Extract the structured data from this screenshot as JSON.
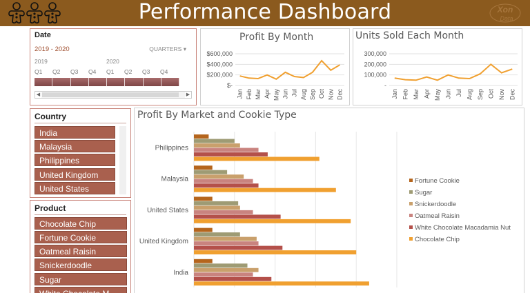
{
  "header": {
    "title": "Performance Dashboard",
    "brand_logo_text": "Xon Data"
  },
  "colors": {
    "header_bg": "#8B5A1E",
    "slicer_item": "#A9604E",
    "line": "#F0A030",
    "fortune_cookie": "#B5651D",
    "sugar": "#9E9B74",
    "snickerdoodle": "#C9A06C",
    "oatmeal_raisin": "#C9837F",
    "white_chocolate_macadamia_nut": "#B4504A",
    "chocolate_chip": "#F0A030"
  },
  "timeline": {
    "title": "Date",
    "range": "2019 - 2020",
    "level": "QUARTERS",
    "years": [
      "2019",
      "2020"
    ],
    "quarters": [
      "Q1",
      "Q2",
      "Q3",
      "Q4",
      "Q1",
      "Q2",
      "Q3",
      "Q4"
    ],
    "scroll_left": "◀",
    "scroll_right": "▶"
  },
  "country_slicer": {
    "title": "Country",
    "items": [
      "India",
      "Malaysia",
      "Philippines",
      "United Kingdom",
      "United States"
    ]
  },
  "product_slicer": {
    "title": "Product",
    "items": [
      "Chocolate Chip",
      "Fortune Cookie",
      "Oatmeal Raisin",
      "Snickerdoodle",
      "Sugar",
      "White Chocolate M..."
    ]
  },
  "chart_data": [
    {
      "type": "line",
      "title": "Profit By Month",
      "categories": [
        "Jan",
        "Feb",
        "Mar",
        "Apr",
        "May",
        "Jun",
        "Jul",
        "Aug",
        "Sep",
        "Oct",
        "Nov",
        "Dec"
      ],
      "values": [
        180000,
        140000,
        130000,
        200000,
        120000,
        250000,
        170000,
        150000,
        250000,
        470000,
        290000,
        390000
      ],
      "ylim": [
        0,
        600000
      ],
      "yticks": [
        "$-",
        "$200,000",
        "$400,000",
        "$600,000"
      ],
      "grid": true
    },
    {
      "type": "line",
      "title": "Units Sold Each Month",
      "categories": [
        "Jan",
        "Feb",
        "Mar",
        "Apr",
        "May",
        "Jun",
        "Jul",
        "Aug",
        "Sep",
        "Oct",
        "Nov",
        "Dec"
      ],
      "values": [
        70000,
        55000,
        50000,
        80000,
        50000,
        100000,
        70000,
        65000,
        110000,
        200000,
        120000,
        155000
      ],
      "ylim": [
        0,
        300000
      ],
      "yticks": [
        "-",
        "100,000",
        "200,000",
        "300,000"
      ],
      "grid": true
    },
    {
      "type": "bar",
      "title": "Profit By Market and Cookie Type",
      "categories": [
        "Philippines",
        "Malaysia",
        "United States",
        "United Kingdom",
        "India"
      ],
      "series": [
        {
          "name": "Fortune Cookie",
          "values": [
            40000,
            50000,
            50000,
            50000,
            50000
          ]
        },
        {
          "name": "Sugar",
          "values": [
            110000,
            90000,
            120000,
            125000,
            145000
          ]
        },
        {
          "name": "Snickerdoodle",
          "values": [
            125000,
            135000,
            125000,
            170000,
            175000
          ]
        },
        {
          "name": "Oatmeal Raisin",
          "values": [
            175000,
            160000,
            160000,
            175000,
            160000
          ]
        },
        {
          "name": "White Chocolate Macadamia Nut",
          "values": [
            200000,
            175000,
            235000,
            240000,
            210000
          ]
        },
        {
          "name": "Chocolate Chip",
          "values": [
            340000,
            385000,
            425000,
            440000,
            475000
          ]
        }
      ],
      "xlim": [
        0,
        550000
      ],
      "legend": "right",
      "grid": true
    }
  ]
}
